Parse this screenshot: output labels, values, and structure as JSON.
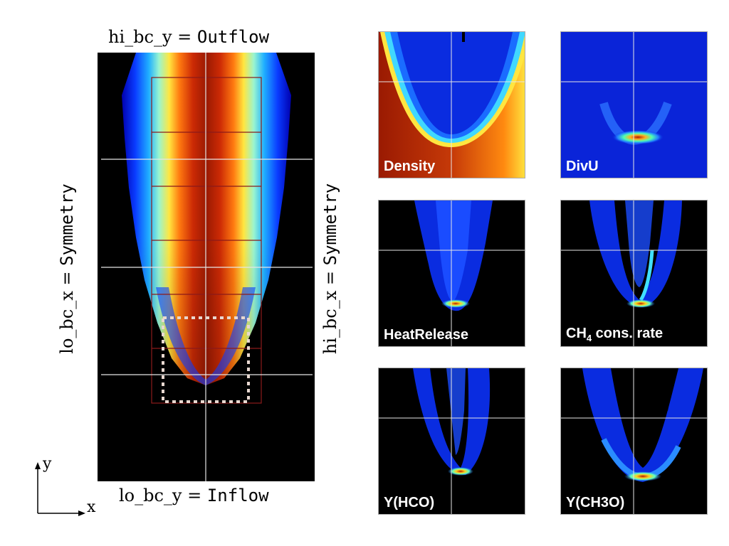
{
  "main_plot": {
    "top_label_prefix": "hi_bc_y = ",
    "top_label_value": "Outflow",
    "bottom_label_prefix": "lo_bc_y = ",
    "bottom_label_value": "Inflow",
    "left_label_prefix": "lo_bc_x = ",
    "left_label_value": "Symmetry",
    "right_label_prefix": "hi_bc_x = ",
    "right_label_value": "Symmetry"
  },
  "axes": {
    "y_label": "y",
    "x_label": "x"
  },
  "panels": {
    "density": {
      "label": "Density"
    },
    "divu": {
      "label": "DivU"
    },
    "heat_release": {
      "label": "HeatRelease"
    },
    "ch4_rate": {
      "label_main": "CH",
      "label_sub": "4",
      "label_rest": " cons. rate"
    },
    "hco": {
      "label": "Y(HCO)"
    },
    "ch3o": {
      "label": "Y(CH3O)"
    }
  },
  "colors": {
    "background": "#000000",
    "grid_line": "#e0e0e0",
    "amr_box": "#8b1a1a",
    "zoom_box": "#e8d8d0",
    "colormap": "jet"
  }
}
